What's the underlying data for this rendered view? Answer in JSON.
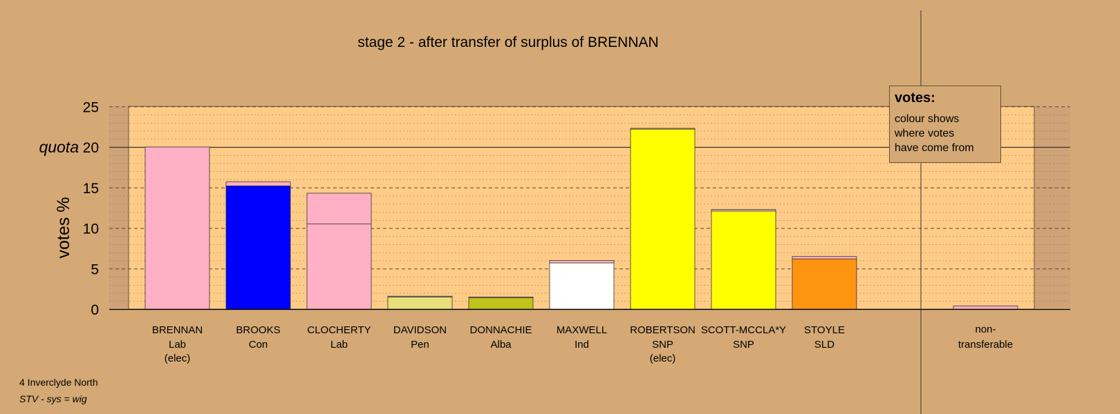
{
  "chart_data": {
    "type": "bar",
    "title": "stage 2 - after transfer of surplus of BRENNAN",
    "ylabel": "votes %",
    "xlabel": "",
    "ylim": [
      0,
      25
    ],
    "yticks": [
      0,
      5,
      10,
      15,
      20,
      25
    ],
    "quota": 20,
    "quota_label": "quota",
    "grid": "dashed major every 5, dotted minor every 1",
    "candidates": [
      {
        "name": "BRENNAN",
        "party": "Lab",
        "status": "(elec)",
        "segments": [
          {
            "value": 20.0,
            "color": "#FFB0C4"
          }
        ]
      },
      {
        "name": "BROOKS",
        "party": "Con",
        "status": "",
        "segments": [
          {
            "value": 15.2,
            "color": "#0000FF"
          },
          {
            "value": 0.5,
            "color": "#FFB0C4"
          }
        ]
      },
      {
        "name": "CLOCHERTY",
        "party": "Lab",
        "status": "",
        "segments": [
          {
            "value": 10.5,
            "color": "#FFB0C4"
          },
          {
            "value": 3.8,
            "color": "#FFB0C4"
          }
        ]
      },
      {
        "name": "DAVIDSON",
        "party": "Pen",
        "status": "",
        "segments": [
          {
            "value": 1.5,
            "color": "#E8E07A"
          },
          {
            "value": 0.1,
            "color": "#FFB0C4"
          }
        ]
      },
      {
        "name": "DONNACHIE",
        "party": "Alba",
        "status": "",
        "segments": [
          {
            "value": 1.4,
            "color": "#BFC31A"
          },
          {
            "value": 0.1,
            "color": "#FFB0C4"
          }
        ]
      },
      {
        "name": "MAXWELL",
        "party": "Ind",
        "status": "",
        "segments": [
          {
            "value": 5.7,
            "color": "#FFFFFF"
          },
          {
            "value": 0.3,
            "color": "#FFB0C4"
          }
        ]
      },
      {
        "name": "ROBERTSON",
        "party": "SNP",
        "status": "(elec)",
        "segments": [
          {
            "value": 22.2,
            "color": "#FFFF00"
          },
          {
            "value": 0.1,
            "color": "#FFB0C4"
          }
        ]
      },
      {
        "name": "SCOTT-MCCLA*Y",
        "party": "SNP",
        "status": "",
        "segments": [
          {
            "value": 12.1,
            "color": "#FFFF00"
          },
          {
            "value": 0.2,
            "color": "#FFB0C4"
          }
        ]
      },
      {
        "name": "STOYLE",
        "party": "SLD",
        "status": "",
        "segments": [
          {
            "value": 6.2,
            "color": "#FF9410"
          },
          {
            "value": 0.3,
            "color": "#FFB0C4"
          }
        ]
      }
    ],
    "nontransferable": {
      "label_line1": "non-",
      "label_line2": "transferable",
      "segments": [
        {
          "value": 0.4,
          "color": "#FFB0C4"
        }
      ]
    }
  },
  "legend": {
    "title": "votes:",
    "lines": [
      "colour shows",
      "where votes",
      "have come from"
    ]
  },
  "footnotes": {
    "region": "4 Inverclyde North",
    "system": "STV - sys = wig"
  },
  "colors": {
    "background": "#D4A976",
    "plot_area": "#FFCC88",
    "outside_band": "#CFA277"
  }
}
